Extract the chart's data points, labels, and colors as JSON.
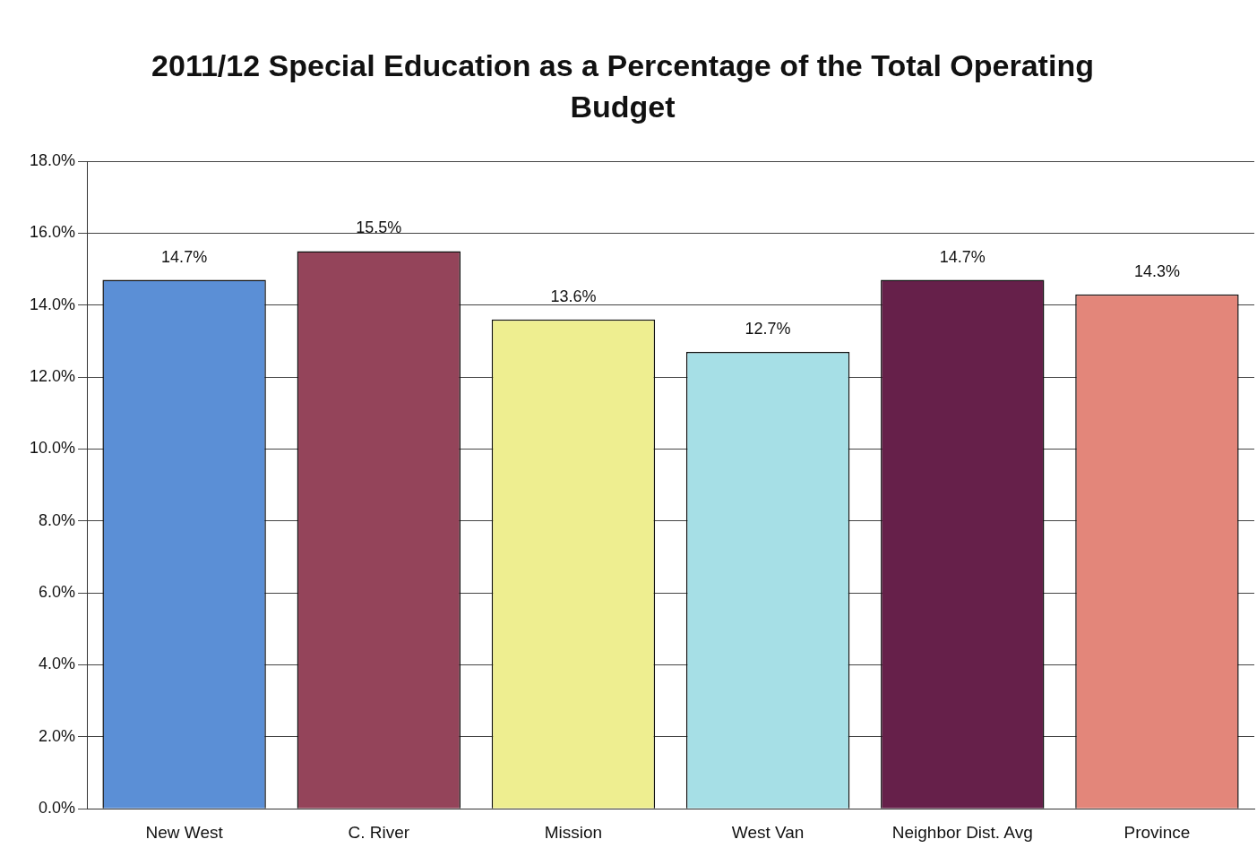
{
  "chart_data": {
    "type": "bar",
    "title": "2011/12 Special Education as a Percentage of the Total Operating Budget",
    "categories": [
      "New West",
      "C. River",
      "Mission",
      "West Van",
      "Neighbor Dist. Avg",
      "Province"
    ],
    "values": [
      14.7,
      15.5,
      13.6,
      12.7,
      14.7,
      14.3
    ],
    "colors": [
      "#5b8fd6",
      "#94445a",
      "#eeee90",
      "#a6dfe6",
      "#66204a",
      "#e3867a"
    ],
    "value_labels": [
      "14.7%",
      "15.5%",
      "13.6%",
      "12.7%",
      "14.7%",
      "14.3%"
    ],
    "ylim": [
      0,
      18
    ],
    "yticks": [
      {
        "value": 0,
        "label": "0.0%"
      },
      {
        "value": 2,
        "label": "2.0%"
      },
      {
        "value": 4,
        "label": "4.0%"
      },
      {
        "value": 6,
        "label": "6.0%"
      },
      {
        "value": 8,
        "label": "8.0%"
      },
      {
        "value": 10,
        "label": "10.0%"
      },
      {
        "value": 12,
        "label": "12.0%"
      },
      {
        "value": 14,
        "label": "14.0%"
      },
      {
        "value": 16,
        "label": "16.0%"
      },
      {
        "value": 18,
        "label": "18.0%"
      }
    ],
    "grid": "y",
    "legend": false
  }
}
